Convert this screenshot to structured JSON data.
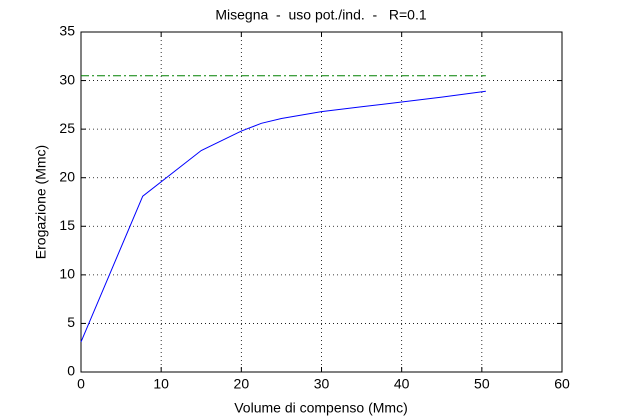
{
  "chart_data": {
    "type": "line",
    "title": "Misegna  -  uso pot./ind.  -   R=0.1",
    "xlabel": "Volume di compenso (Mmc)",
    "ylabel": "Erogazione (Mmc)",
    "series": [
      {
        "color": "#0000ff",
        "linestyle": "solid",
        "x": [
          0,
          7.7,
          15,
          20,
          22.5,
          25,
          30,
          35,
          40,
          45,
          50.5
        ],
        "values": [
          3.1,
          18.1,
          22.8,
          24.8,
          25.6,
          26.1,
          26.8,
          27.3,
          27.8,
          28.3,
          28.9
        ]
      },
      {
        "color": "#008000",
        "linestyle": "dashdot",
        "x": [
          0,
          50.5
        ],
        "values": [
          30.5,
          30.5
        ]
      }
    ],
    "xlim": [
      0,
      60
    ],
    "xticks": [
      0,
      10,
      20,
      30,
      40,
      50,
      60
    ],
    "ylim": [
      0,
      35
    ],
    "yticks": [
      0,
      5,
      10,
      15,
      20,
      25,
      30,
      35
    ],
    "grid": true
  }
}
